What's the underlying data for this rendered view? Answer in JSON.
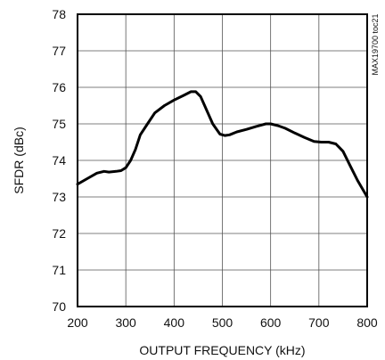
{
  "chart_data": {
    "type": "line",
    "xlabel": "OUTPUT FREQUENCY (kHz)",
    "ylabel": "SFDR (dBc)",
    "side_label": "MAX19700 toc21",
    "xlim": [
      200,
      800
    ],
    "ylim": [
      70,
      78
    ],
    "xticks": [
      200,
      300,
      400,
      500,
      600,
      700,
      800
    ],
    "yticks": [
      70,
      71,
      72,
      73,
      74,
      75,
      76,
      77,
      78
    ],
    "grid": true,
    "series": [
      {
        "color": "#000000",
        "x": [
          200,
          220,
          240,
          255,
          265,
          280,
          290,
          300,
          310,
          320,
          330,
          345,
          360,
          380,
          400,
          420,
          435,
          445,
          455,
          465,
          480,
          495,
          505,
          515,
          530,
          550,
          570,
          590,
          600,
          615,
          630,
          650,
          670,
          690,
          705,
          720,
          735,
          750,
          765,
          780,
          800
        ],
        "y": [
          73.35,
          73.5,
          73.65,
          73.7,
          73.68,
          73.7,
          73.72,
          73.8,
          74.0,
          74.3,
          74.7,
          75.0,
          75.3,
          75.5,
          75.65,
          75.78,
          75.88,
          75.88,
          75.75,
          75.45,
          75.0,
          74.72,
          74.68,
          74.7,
          74.78,
          74.85,
          74.93,
          75.0,
          75.0,
          74.95,
          74.88,
          74.75,
          74.63,
          74.52,
          74.5,
          74.5,
          74.45,
          74.25,
          73.85,
          73.45,
          73.0
        ]
      }
    ]
  }
}
